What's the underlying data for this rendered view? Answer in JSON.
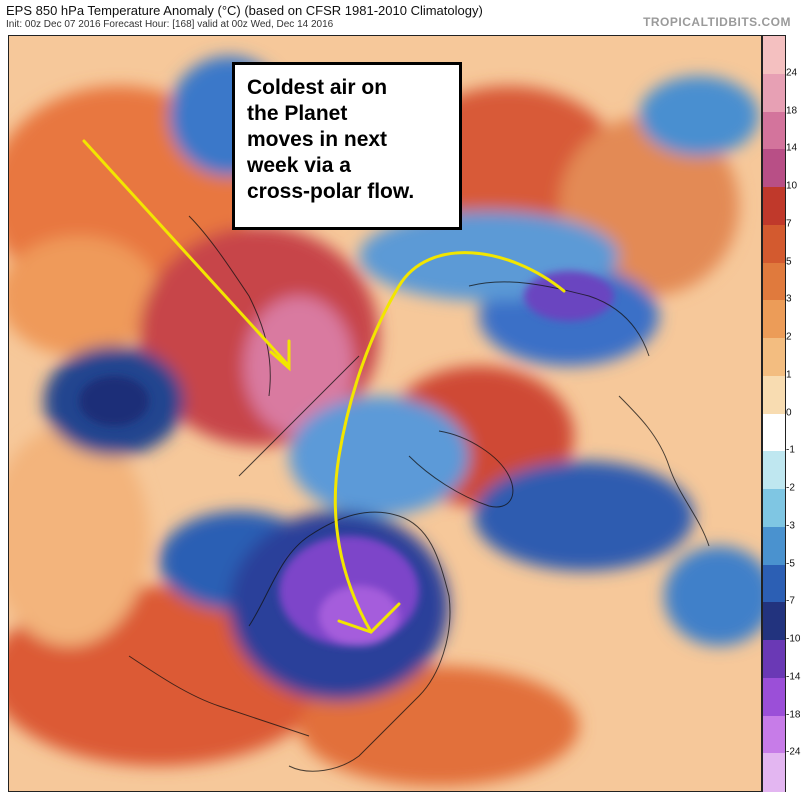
{
  "header": {
    "title": "EPS 850 hPa Temperature Anomaly (°C) (based on CFSR 1981-2010 Climatology)",
    "subtitle": "Init: 00z Dec 07 2016   Forecast Hour: [168]   valid at 00z Wed, Dec 14 2016",
    "brand": "TROPICALTIDBITS.COM"
  },
  "annotation": {
    "lines": [
      "Coldest air on",
      "the Planet",
      "moves in next",
      "week via a",
      "cross-polar flow."
    ]
  },
  "legend": {
    "labels": [
      "24",
      "18",
      "14",
      "10",
      "7",
      "5",
      "3",
      "2",
      "1",
      "0",
      "-1",
      "-2",
      "-3",
      "-5",
      "-7",
      "-10",
      "-14",
      "-18",
      "-24"
    ],
    "colors": [
      "#f4c0c0",
      "#e7a0b4",
      "#d3749c",
      "#b84f86",
      "#c0392b",
      "#d35a2f",
      "#e07a3d",
      "#ec9c58",
      "#f3bd80",
      "#f8dcb1",
      "#ffffff",
      "#bfe7f0",
      "#7fc6e3",
      "#4a92cf",
      "#2c5fb4",
      "#22337e",
      "#6a39b5",
      "#9b4fd8",
      "#c77ce8",
      "#e3b6f1"
    ]
  },
  "colors": {
    "warm_dark": "#b4323a",
    "warm": "#e0633a",
    "warm_light": "#f4b07a",
    "cold_dark": "#1f3a8f",
    "cold": "#3b78c9",
    "cold_light": "#9fd3ec",
    "extreme_cold": "#9b4fd8",
    "arrow": "#f2e600"
  }
}
